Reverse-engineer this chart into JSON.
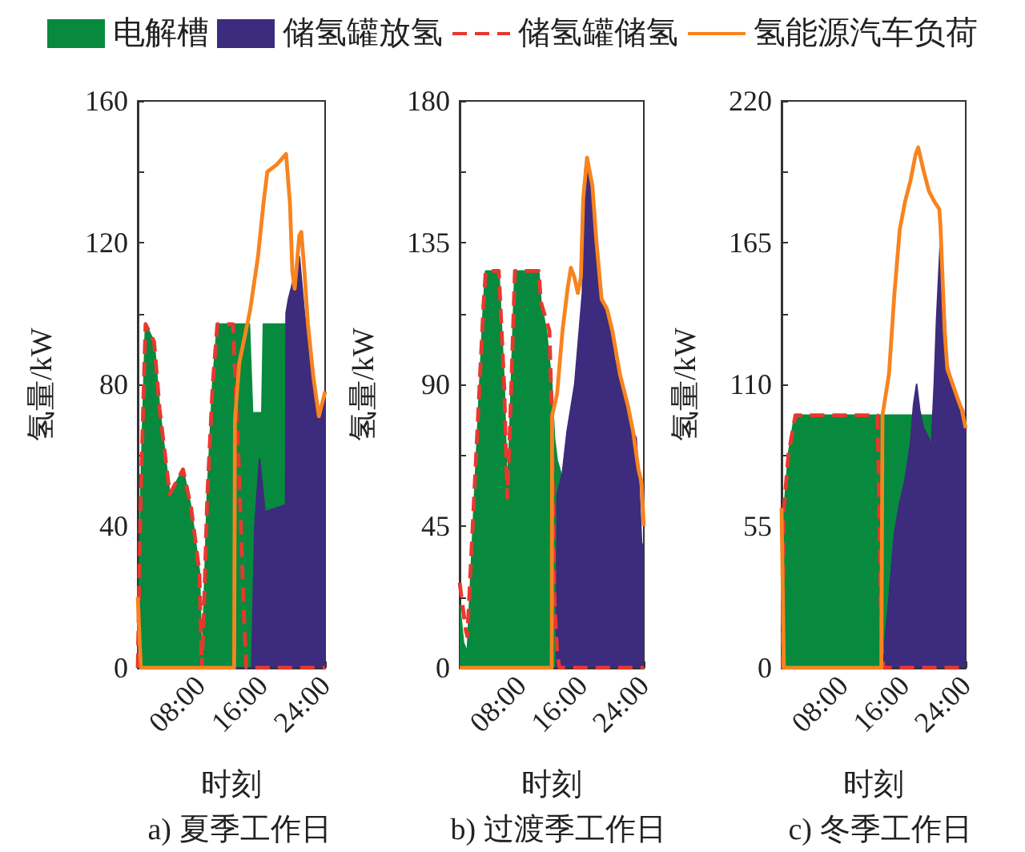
{
  "chart_data": [
    {
      "type": "area",
      "title": "a) 夏季工作日",
      "xlabel": "时刻",
      "ylabel": "氢量/kW",
      "legend": "top",
      "xlim": [
        0,
        24
      ],
      "xticks": [
        {
          "value": 8,
          "label": "08:00"
        },
        {
          "value": 16,
          "label": "16:00"
        },
        {
          "value": 24,
          "label": "24:00"
        }
      ],
      "ylim": [
        0,
        160
      ],
      "yticks": [
        0,
        {
          "value": 20,
          "label": null
        },
        40,
        {
          "value": 60,
          "label": null
        },
        80,
        {
          "value": 100,
          "label": null
        },
        120,
        {
          "value": 140,
          "label": null
        },
        160
      ],
      "series": [
        {
          "name": "电解槽",
          "color": "#078a3e",
          "x": [
            0,
            0.4,
            1.0,
            2.1,
            2.8,
            4.1,
            5.8,
            6.85,
            7.9,
            8.2,
            8.5,
            8.9,
            9.6,
            10.2,
            14.3,
            14.7,
            15.9,
            16.1,
            18.9,
            19.0
          ],
          "values": [
            0,
            50,
            97,
            92,
            73,
            49,
            56,
            45,
            27,
            0,
            18,
            48,
            80,
            97,
            97,
            72,
            72,
            97,
            97,
            0
          ]
        },
        {
          "name": "储氢罐放氢",
          "color": "#3d2b7d",
          "x": [
            0,
            0.3,
            14.6,
            15.0,
            15.6,
            16.3,
            18.95,
            19.0,
            19.3,
            20.0,
            20.7,
            21.35,
            22.4,
            23.05,
            23.7,
            24
          ],
          "values": [
            10,
            0,
            0,
            40,
            59,
            44,
            46,
            100,
            104,
            110,
            116,
            100,
            82,
            71,
            75,
            76
          ]
        },
        {
          "name": "储氢罐储氢",
          "type": "line",
          "line_style": "dashed",
          "color": "#e8382e",
          "x": [
            0,
            0.1,
            0.4,
            1.0,
            2.1,
            2.8,
            4.1,
            5.8,
            6.85,
            7.9,
            8.2,
            8.5,
            8.9,
            9.6,
            10.2,
            12.2,
            12.9,
            13.6,
            13.9,
            24
          ],
          "values": [
            0,
            0,
            50,
            97,
            92,
            73,
            49,
            56,
            45,
            27,
            0,
            18,
            48,
            80,
            97,
            97,
            60,
            15,
            0,
            0
          ]
        },
        {
          "name": "氢能源汽车负荷",
          "type": "line",
          "color": "#f7841f",
          "x": [
            0,
            0.4,
            12.35,
            12.45,
            13.0,
            14.4,
            15.4,
            16.1,
            16.6,
            17.8,
            19.0,
            19.5,
            19.8,
            20.1,
            20.7,
            20.95,
            21.35,
            21.8,
            22.5,
            23.2,
            23.9,
            24
          ],
          "values": [
            20,
            0,
            0,
            70,
            86,
            101,
            116,
            131,
            140,
            142,
            145,
            131,
            112,
            107,
            122,
            123,
            112,
            97,
            82,
            71,
            77,
            78
          ]
        }
      ]
    },
    {
      "type": "area",
      "title": "b) 过渡季工作日",
      "xlabel": "时刻",
      "ylabel": "氢量/kW",
      "xlim": [
        0,
        24
      ],
      "xticks": [
        {
          "value": 8,
          "label": "08:00"
        },
        {
          "value": 16,
          "label": "16:00"
        },
        {
          "value": 24,
          "label": "24:00"
        }
      ],
      "ylim": [
        0,
        180
      ],
      "yticks": [
        0,
        {
          "value": 22.5,
          "label": null
        },
        45,
        {
          "value": 67.5,
          "label": null
        },
        90,
        {
          "value": 112.5,
          "label": null
        },
        135,
        {
          "value": 157.5,
          "label": null
        },
        180
      ],
      "series": [
        {
          "color": "#078a3e",
          "x": [
            0,
            0.5,
            1.0,
            3.1,
            3.4,
            5.1,
            5.8,
            6.2,
            6.5,
            7.2,
            10.3,
            10.6,
            11.3,
            12.0,
            12.35,
            12.7,
            13.4,
            13.45
          ],
          "values": [
            20,
            8,
            5,
            115,
            126,
            126,
            90,
            54,
            72,
            126,
            126,
            116,
            107,
            90,
            73,
            66,
            60,
            0
          ]
        },
        {
          "color": "#3d2b7d",
          "x": [
            0,
            12.6,
            12.7,
            13.4,
            14.0,
            15.0,
            16.0,
            16.3,
            16.6,
            17.3,
            17.8,
            18.2,
            18.9,
            19.5,
            20.2,
            21.3,
            22.3,
            23.0,
            23.3,
            23.7,
            24
          ],
          "values": [
            0,
            0,
            55,
            62,
            75,
            90,
            119,
            158,
            161,
            152,
            136,
            119,
            115,
            112,
            98,
            87,
            76,
            73,
            61,
            40,
            37
          ]
        },
        {
          "type": "line",
          "line_style": "dashed",
          "color": "#e8382e",
          "x": [
            0,
            0.8,
            1.0,
            3.1,
            3.4,
            5.1,
            5.8,
            6.2,
            6.5,
            7.2,
            10.3,
            10.6,
            11.7,
            12.0,
            12.35,
            12.7,
            13.0,
            24
          ],
          "values": [
            27,
            12,
            10,
            115,
            126,
            126,
            90,
            54,
            72,
            126,
            126,
            116,
            107,
            81,
            22,
            5,
            0,
            0
          ]
        },
        {
          "type": "line",
          "color": "#f7841f",
          "x": [
            0,
            12.0,
            12.05,
            12.7,
            13.4,
            14.1,
            14.5,
            14.95,
            15.4,
            15.8,
            16.1,
            16.6,
            17.3,
            17.8,
            18.5,
            19.2,
            19.9,
            20.9,
            21.95,
            22.6,
            23.3,
            23.7,
            24
          ],
          "values": [
            0,
            0,
            80,
            87,
            107,
            121,
            127,
            124,
            119,
            124,
            149,
            162,
            153,
            136,
            117,
            114,
            107,
            93,
            83,
            75,
            63,
            59,
            45
          ]
        }
      ]
    },
    {
      "type": "area",
      "title": "c) 冬季工作日",
      "xlabel": "时刻",
      "ylabel": "氢量/kW",
      "xlim": [
        0,
        24
      ],
      "xticks": [
        {
          "value": 8,
          "label": "08:00"
        },
        {
          "value": 16,
          "label": "16:00"
        },
        {
          "value": 24,
          "label": "24:00"
        }
      ],
      "ylim": [
        0,
        220
      ],
      "yticks": [
        0,
        {
          "value": 27.5,
          "label": null
        },
        55,
        {
          "value": 82.5,
          "label": null
        },
        110,
        {
          "value": 137.5,
          "label": null
        },
        165,
        {
          "value": 192.5,
          "label": null
        },
        220
      ],
      "series": [
        {
          "color": "#078a3e",
          "x": [
            0,
            0.2,
            0.9,
            1.6,
            2.0,
            19.9,
            19.95
          ],
          "values": [
            0,
            56,
            83,
            96,
            98,
            98,
            0
          ]
        },
        {
          "color": "#3d2b7d",
          "x": [
            0,
            0.3,
            12.97,
            13.3,
            14.0,
            14.7,
            15.4,
            16.1,
            16.8,
            17.2,
            17.6,
            18.0,
            18.5,
            19.2,
            19.5,
            19.9,
            20.2,
            20.7,
            21.0,
            21.6,
            22.3,
            23.0,
            23.7,
            24
          ],
          "values": [
            15,
            0,
            0,
            5,
            27,
            52,
            64,
            73,
            87,
            102,
            110,
            100,
            93,
            89,
            85,
            110,
            135,
            166,
            152,
            118,
            110,
            104,
            100,
            93
          ]
        },
        {
          "type": "line",
          "line_style": "dashed",
          "color": "#e8382e",
          "x": [
            0,
            0.15,
            0.25,
            0.9,
            1.8,
            12.5,
            12.8,
            13.0,
            13.3,
            24
          ],
          "values": [
            0,
            0,
            60,
            83,
            98,
            98,
            50,
            10,
            0,
            0
          ]
        },
        {
          "type": "line",
          "color": "#f7841f",
          "x": [
            0,
            0.3,
            13.0,
            13.15,
            14.0,
            14.7,
            15.4,
            16.1,
            16.8,
            17.45,
            17.8,
            18.5,
            19.2,
            19.9,
            20.55,
            20.7,
            21.25,
            21.6,
            22.3,
            23.0,
            23.5,
            24
          ],
          "values": [
            62,
            0,
            0,
            98,
            114,
            145,
            170,
            181,
            189,
            199,
            202,
            193,
            185,
            181,
            178,
            172,
            131,
            116,
            110,
            104,
            100,
            93
          ]
        }
      ]
    }
  ]
}
